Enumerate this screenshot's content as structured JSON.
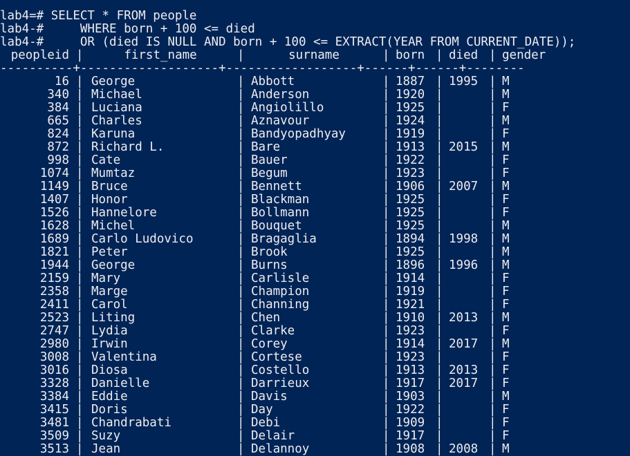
{
  "prompt_lines": [
    "lab4=# SELECT * FROM people",
    "lab4-#     WHERE born + 100 <= died",
    "lab4-#     OR (died IS NULL AND born + 100 <= EXTRACT(YEAR FROM CURRENT_DATE));"
  ],
  "columns": [
    "peopleid",
    "first_name",
    "surname",
    "born",
    "died",
    "gender"
  ],
  "separator": "----------+-------------------+------------------+------+------+--------",
  "rows": [
    {
      "peopleid": "16",
      "first_name": "George",
      "surname": "Abbott",
      "born": "1887",
      "died": "1995",
      "gender": "M"
    },
    {
      "peopleid": "340",
      "first_name": "Michael",
      "surname": "Anderson",
      "born": "1920",
      "died": "",
      "gender": "M"
    },
    {
      "peopleid": "384",
      "first_name": "Luciana",
      "surname": "Angiolillo",
      "born": "1925",
      "died": "",
      "gender": "F"
    },
    {
      "peopleid": "665",
      "first_name": "Charles",
      "surname": "Aznavour",
      "born": "1924",
      "died": "",
      "gender": "M"
    },
    {
      "peopleid": "824",
      "first_name": "Karuna",
      "surname": "Bandyopadhyay",
      "born": "1919",
      "died": "",
      "gender": "F"
    },
    {
      "peopleid": "872",
      "first_name": "Richard L.",
      "surname": "Bare",
      "born": "1913",
      "died": "2015",
      "gender": "M"
    },
    {
      "peopleid": "998",
      "first_name": "Cate",
      "surname": "Bauer",
      "born": "1922",
      "died": "",
      "gender": "F"
    },
    {
      "peopleid": "1074",
      "first_name": "Mumtaz",
      "surname": "Begum",
      "born": "1923",
      "died": "",
      "gender": "F"
    },
    {
      "peopleid": "1149",
      "first_name": "Bruce",
      "surname": "Bennett",
      "born": "1906",
      "died": "2007",
      "gender": "M"
    },
    {
      "peopleid": "1407",
      "first_name": "Honor",
      "surname": "Blackman",
      "born": "1925",
      "died": "",
      "gender": "F"
    },
    {
      "peopleid": "1526",
      "first_name": "Hannelore",
      "surname": "Bollmann",
      "born": "1925",
      "died": "",
      "gender": "F"
    },
    {
      "peopleid": "1628",
      "first_name": "Michel",
      "surname": "Bouquet",
      "born": "1925",
      "died": "",
      "gender": "M"
    },
    {
      "peopleid": "1689",
      "first_name": "Carlo Ludovico",
      "surname": "Bragaglia",
      "born": "1894",
      "died": "1998",
      "gender": "M"
    },
    {
      "peopleid": "1821",
      "first_name": "Peter",
      "surname": "Brook",
      "born": "1925",
      "died": "",
      "gender": "M"
    },
    {
      "peopleid": "1944",
      "first_name": "George",
      "surname": "Burns",
      "born": "1896",
      "died": "1996",
      "gender": "M"
    },
    {
      "peopleid": "2159",
      "first_name": "Mary",
      "surname": "Carlisle",
      "born": "1914",
      "died": "",
      "gender": "F"
    },
    {
      "peopleid": "2358",
      "first_name": "Marge",
      "surname": "Champion",
      "born": "1919",
      "died": "",
      "gender": "F"
    },
    {
      "peopleid": "2411",
      "first_name": "Carol",
      "surname": "Channing",
      "born": "1921",
      "died": "",
      "gender": "F"
    },
    {
      "peopleid": "2523",
      "first_name": "Liting",
      "surname": "Chen",
      "born": "1910",
      "died": "2013",
      "gender": "M"
    },
    {
      "peopleid": "2747",
      "first_name": "Lydia",
      "surname": "Clarke",
      "born": "1923",
      "died": "",
      "gender": "F"
    },
    {
      "peopleid": "2980",
      "first_name": "Irwin",
      "surname": "Corey",
      "born": "1914",
      "died": "2017",
      "gender": "M"
    },
    {
      "peopleid": "3008",
      "first_name": "Valentina",
      "surname": "Cortese",
      "born": "1923",
      "died": "",
      "gender": "F"
    },
    {
      "peopleid": "3016",
      "first_name": "Diosa",
      "surname": "Costello",
      "born": "1913",
      "died": "2013",
      "gender": "F"
    },
    {
      "peopleid": "3328",
      "first_name": "Danielle",
      "surname": "Darrieux",
      "born": "1917",
      "died": "2017",
      "gender": "F"
    },
    {
      "peopleid": "3384",
      "first_name": "Eddie",
      "surname": "Davis",
      "born": "1903",
      "died": "",
      "gender": "M"
    },
    {
      "peopleid": "3415",
      "first_name": "Doris",
      "surname": "Day",
      "born": "1922",
      "died": "",
      "gender": "F"
    },
    {
      "peopleid": "3481",
      "first_name": "Chandrabati",
      "surname": "Debi",
      "born": "1909",
      "died": "",
      "gender": "F"
    },
    {
      "peopleid": "3509",
      "first_name": "Suzy",
      "surname": "Delair",
      "born": "1917",
      "died": "",
      "gender": "F"
    },
    {
      "peopleid": "3513",
      "first_name": "Jean",
      "surname": "Delannoy",
      "born": "1908",
      "died": "2008",
      "gender": "M"
    }
  ],
  "colors": {
    "background": "#012456",
    "foreground": "#eeedf0"
  }
}
